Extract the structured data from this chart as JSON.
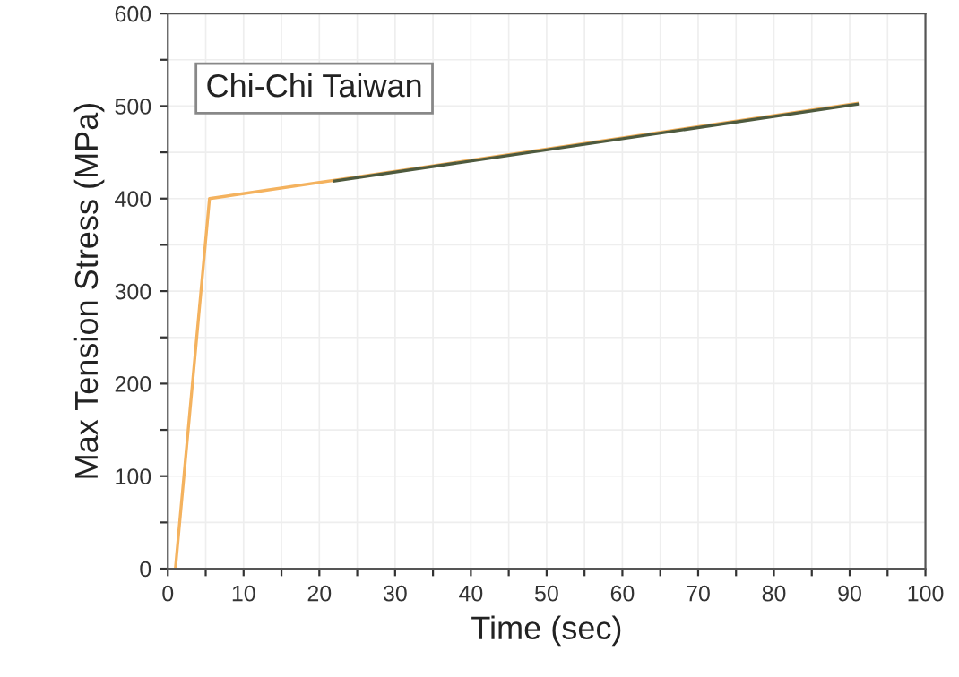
{
  "chart_data": {
    "type": "line",
    "xlabel": "Time (sec)",
    "ylabel": "Max Tension Stress (MPa)",
    "annotations": [
      "Chi-Chi Taiwan"
    ],
    "series": [
      {
        "color": "#f4b25e",
        "x": [
          1,
          5.5,
          91
        ],
        "values": [
          0,
          400,
          503
        ]
      },
      {
        "color": "#4e5a3e",
        "x": [
          22,
          91
        ],
        "values": [
          419,
          502
        ]
      }
    ],
    "xlim": [
      0,
      100
    ],
    "ylim": [
      0,
      600
    ],
    "xticks": [
      0,
      {
        "value": 5,
        "label": null
      },
      10,
      {
        "value": 15,
        "label": null
      },
      20,
      {
        "value": 25,
        "label": null
      },
      30,
      {
        "value": 35,
        "label": null
      },
      40,
      {
        "value": 45,
        "label": null
      },
      50,
      {
        "value": 55,
        "label": null
      },
      60,
      {
        "value": 65,
        "label": null
      },
      70,
      {
        "value": 75,
        "label": null
      },
      80,
      {
        "value": 85,
        "label": null
      },
      90,
      {
        "value": 95,
        "label": null
      },
      100
    ],
    "yticks": [
      0,
      {
        "value": 50,
        "label": null
      },
      100,
      {
        "value": 150,
        "label": null
      },
      200,
      {
        "value": 250,
        "label": null
      },
      300,
      {
        "value": 350,
        "label": null
      },
      400,
      {
        "value": 450,
        "label": null
      },
      500,
      {
        "value": 550,
        "label": null
      },
      600
    ],
    "grid": true,
    "marker": "none",
    "line_style": "solid"
  }
}
